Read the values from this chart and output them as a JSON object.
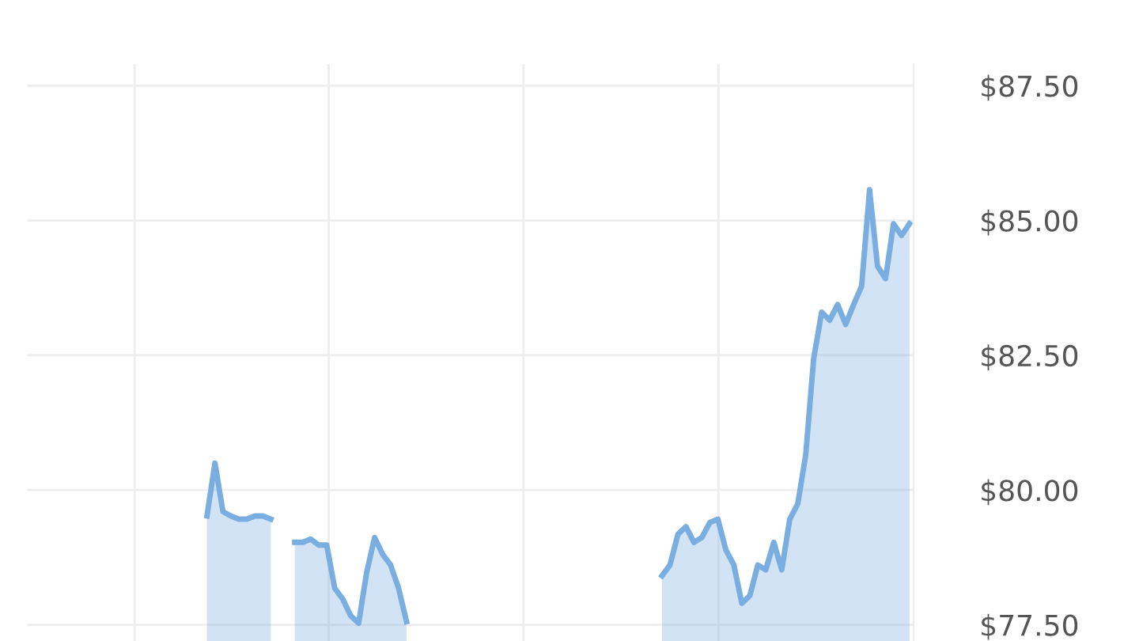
{
  "chart_data": {
    "type": "area",
    "categories": [
      null,
      null,
      null,
      null,
      null,
      null,
      null,
      null,
      null,
      null,
      null,
      null,
      null,
      null,
      null,
      null,
      null,
      null,
      null,
      null,
      null,
      null,
      null,
      null,
      null,
      null,
      null,
      null,
      null,
      null,
      null,
      null,
      null,
      null,
      null,
      null,
      null,
      null,
      null,
      null,
      null,
      null,
      null,
      null,
      null,
      null,
      null,
      null,
      null,
      null,
      null,
      null,
      null,
      null,
      null,
      null,
      null,
      null,
      null,
      null,
      null,
      null,
      null,
      null,
      null,
      null,
      null,
      null,
      null,
      null,
      null,
      null,
      null,
      null,
      null,
      null,
      null,
      null,
      null,
      null,
      null,
      null,
      null,
      null,
      null,
      null,
      null,
      null,
      null,
      null,
      null,
      null,
      null,
      null,
      null,
      null,
      null,
      null,
      null,
      null,
      null,
      null,
      null,
      null,
      null,
      null,
      null,
      null,
      null,
      null,
      null
    ],
    "series": [
      {
        "color": "#7aaee0",
        "values": [
          null,
          null,
          null,
          null,
          null,
          null,
          null,
          null,
          null,
          null,
          null,
          null,
          null,
          null,
          null,
          null,
          null,
          null,
          null,
          null,
          null,
          null,
          79.52,
          80.5,
          79.6,
          79.52,
          79.46,
          79.46,
          79.52,
          79.52,
          79.46,
          null,
          null,
          79.03,
          79.03,
          79.09,
          78.98,
          78.98,
          78.18,
          77.98,
          77.67,
          77.53,
          78.47,
          79.12,
          78.81,
          78.61,
          78.18,
          77.56,
          null,
          null,
          null,
          null,
          null,
          null,
          null,
          null,
          null,
          null,
          null,
          null,
          null,
          null,
          null,
          null,
          null,
          null,
          null,
          null,
          null,
          null,
          null,
          null,
          null,
          null,
          null,
          null,
          null,
          null,
          null,
          78.41,
          78.61,
          79.18,
          79.32,
          79.03,
          79.12,
          79.4,
          79.46,
          78.89,
          78.61,
          77.9,
          78.04,
          78.61,
          78.52,
          79.03,
          78.52,
          79.46,
          79.74,
          80.65,
          82.44,
          83.3,
          83.15,
          83.44,
          83.07,
          83.44,
          83.78,
          85.57,
          84.15,
          83.92,
          84.94,
          84.72,
          84.94
        ]
      }
    ],
    "ylim": [
      77.2,
      87.9
    ],
    "yticks": [
      {
        "value": 77.5,
        "label": "$77.50"
      },
      {
        "value": 80,
        "label": "$80.00"
      },
      {
        "value": 82.5,
        "label": "$82.50"
      },
      {
        "value": 85,
        "label": "$85.00"
      },
      {
        "value": 87.5,
        "label": "$87.50"
      }
    ],
    "grid": true,
    "line_style": "solid"
  }
}
